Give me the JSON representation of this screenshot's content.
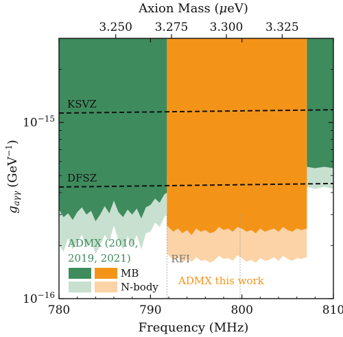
{
  "chart_data": {
    "type": "area",
    "xlabel": "Frequency (MHz)",
    "top_xlabel_prefix": "Axion Mass (",
    "top_xlabel_mu": "μ",
    "top_xlabel_suffix": "eV)",
    "ylabel_g": "g",
    "ylabel_sub": "aγγ",
    "ylabel_unit": "(GeV",
    "ylabel_exp": "−1",
    "ylabel_close": ")",
    "xlim": [
      780,
      810
    ],
    "ylim": [
      1e-16,
      3e-15
    ],
    "yscale": "log",
    "x_ticks": [
      780,
      790,
      800,
      810
    ],
    "y_ticks": [
      {
        "value": 1e-15,
        "base": "10",
        "exp": "−15"
      },
      {
        "value": 1e-16,
        "base": "10",
        "exp": "−16"
      }
    ],
    "top_ticks": [
      {
        "freq": 786.2,
        "label": "3.250"
      },
      {
        "freq": 792.3,
        "label": "3.275"
      },
      {
        "freq": 798.3,
        "label": "3.300"
      },
      {
        "freq": 804.4,
        "label": "3.325"
      }
    ],
    "models": [
      {
        "name": "KSVZ",
        "g_at_780": 1.13e-15,
        "g_at_810": 1.18e-15
      },
      {
        "name": "DFSZ",
        "g_at_780": 4.3e-16,
        "g_at_810": 4.5e-16
      }
    ],
    "rfi": {
      "label": "RFI",
      "freqs": [
        791.8,
        799.8
      ]
    },
    "series": [
      {
        "name": "ADMX (2010, 2019, 2021) MB",
        "color": "#3e8b5d",
        "x": [
          780,
          780.5,
          781,
          781.5,
          782,
          782.5,
          783,
          783.5,
          784,
          784.5,
          785,
          785.5,
          786,
          786.5,
          787,
          787.5,
          788,
          788.5,
          789,
          789.5,
          790,
          790.5,
          791,
          791.5,
          791.8
        ],
        "y": [
          3.2e-16,
          2.9e-16,
          3.05e-16,
          2.8e-16,
          3.1e-16,
          3.3e-16,
          3e-16,
          3.15e-16,
          2.75e-16,
          3e-16,
          3.35e-16,
          3.05e-16,
          3.6e-16,
          3.1e-16,
          2.9e-16,
          3.2e-16,
          3e-16,
          3.25e-16,
          2.85e-16,
          3.3e-16,
          3.4e-16,
          3.7e-16,
          3.5e-16,
          3.9e-16,
          4e-16
        ]
      },
      {
        "name": "ADMX (2010, 2019, 2021) N-body",
        "color": "#c8e0cf",
        "x": [
          780,
          780.5,
          781,
          781.5,
          782,
          782.5,
          783,
          783.5,
          784,
          784.5,
          785,
          785.5,
          786,
          786.5,
          787,
          787.5,
          788,
          788.5,
          789,
          789.5,
          790,
          790.5,
          791,
          791.5,
          791.8
        ],
        "y": [
          2e-16,
          1.85e-16,
          2.2e-16,
          1.9e-16,
          2.1e-16,
          2.3e-16,
          1.95e-16,
          2.15e-16,
          1.8e-16,
          2e-16,
          2.3e-16,
          2.1e-16,
          2.6e-16,
          2.15e-16,
          1.9e-16,
          2.25e-16,
          2e-16,
          2.3e-16,
          1.9e-16,
          2.35e-16,
          2.4e-16,
          2.7e-16,
          2.55e-16,
          2.9e-16,
          3e-16
        ]
      },
      {
        "name": "ADMX this work MB",
        "color": "#f39419",
        "x": [
          791.8,
          792.5,
          793,
          793.5,
          794,
          794.5,
          795,
          795.5,
          796,
          796.5,
          797,
          797.5,
          798,
          798.5,
          799,
          799.5,
          800,
          800.5,
          801,
          801.5,
          802,
          802.5,
          803,
          803.5,
          804,
          804.5,
          805,
          805.5,
          806,
          806.5,
          807.1
        ],
        "y": [
          2.6e-16,
          2.4e-16,
          2.5e-16,
          2.35e-16,
          2.45e-16,
          2.3e-16,
          2.5e-16,
          2.4e-16,
          2.45e-16,
          2.35e-16,
          2.4e-16,
          2.55e-16,
          2.45e-16,
          2.5e-16,
          2.4e-16,
          2.55e-16,
          2.5e-16,
          2.4e-16,
          2.45e-16,
          2.35e-16,
          2.5e-16,
          2.4e-16,
          2.45e-16,
          2.5e-16,
          2.4e-16,
          2.55e-16,
          2.45e-16,
          2.4e-16,
          2.5e-16,
          2.45e-16,
          2.5e-16
        ]
      },
      {
        "name": "ADMX this work N-body",
        "color": "#fbd3a6",
        "x": [
          791.8,
          792.5,
          793,
          793.5,
          794,
          794.5,
          795,
          795.5,
          796,
          796.5,
          797,
          797.5,
          798,
          798.5,
          799,
          799.5,
          800,
          800.5,
          801,
          801.5,
          802,
          802.5,
          803,
          803.5,
          804,
          804.5,
          805,
          805.5,
          806,
          806.5,
          807.1
        ],
        "y": [
          1.8e-16,
          1.65e-16,
          1.7e-16,
          1.6e-16,
          1.68e-16,
          1.62e-16,
          1.72e-16,
          1.64e-16,
          1.66e-16,
          1.6e-16,
          1.65e-16,
          1.75e-16,
          1.68e-16,
          1.7e-16,
          1.64e-16,
          1.76e-16,
          1.7e-16,
          1.62e-16,
          1.66e-16,
          1.6e-16,
          1.7e-16,
          1.64e-16,
          1.66e-16,
          1.72e-16,
          1.64e-16,
          1.75e-16,
          1.68e-16,
          1.64e-16,
          1.7e-16,
          1.68e-16,
          1.72e-16
        ]
      },
      {
        "name": "ADMX (2010, 2019, 2021) MB right",
        "color": "#3e8b5d",
        "x": [
          807.1,
          808,
          809,
          810
        ],
        "y": [
          5.6e-16,
          5.5e-16,
          5.6e-16,
          5.5e-16
        ]
      },
      {
        "name": "ADMX (2010, 2019, 2021) N-body right",
        "color": "#c8e0cf",
        "x": [
          807.1,
          808,
          809,
          810
        ],
        "y": [
          4.3e-16,
          4.2e-16,
          4.3e-16,
          4.2e-16
        ]
      }
    ],
    "legend": {
      "group1_line1": "ADMX (2010,",
      "group1_line2": "2019, 2021)",
      "mb": "MB",
      "nbody": "N-body",
      "this_work": "ADMX this work",
      "colors": {
        "admx_mb": "#3e8b5d",
        "admx_nbody": "#c8e0cf",
        "this_mb": "#f39419",
        "this_nbody": "#fbd3a6"
      }
    },
    "grid": false
  }
}
